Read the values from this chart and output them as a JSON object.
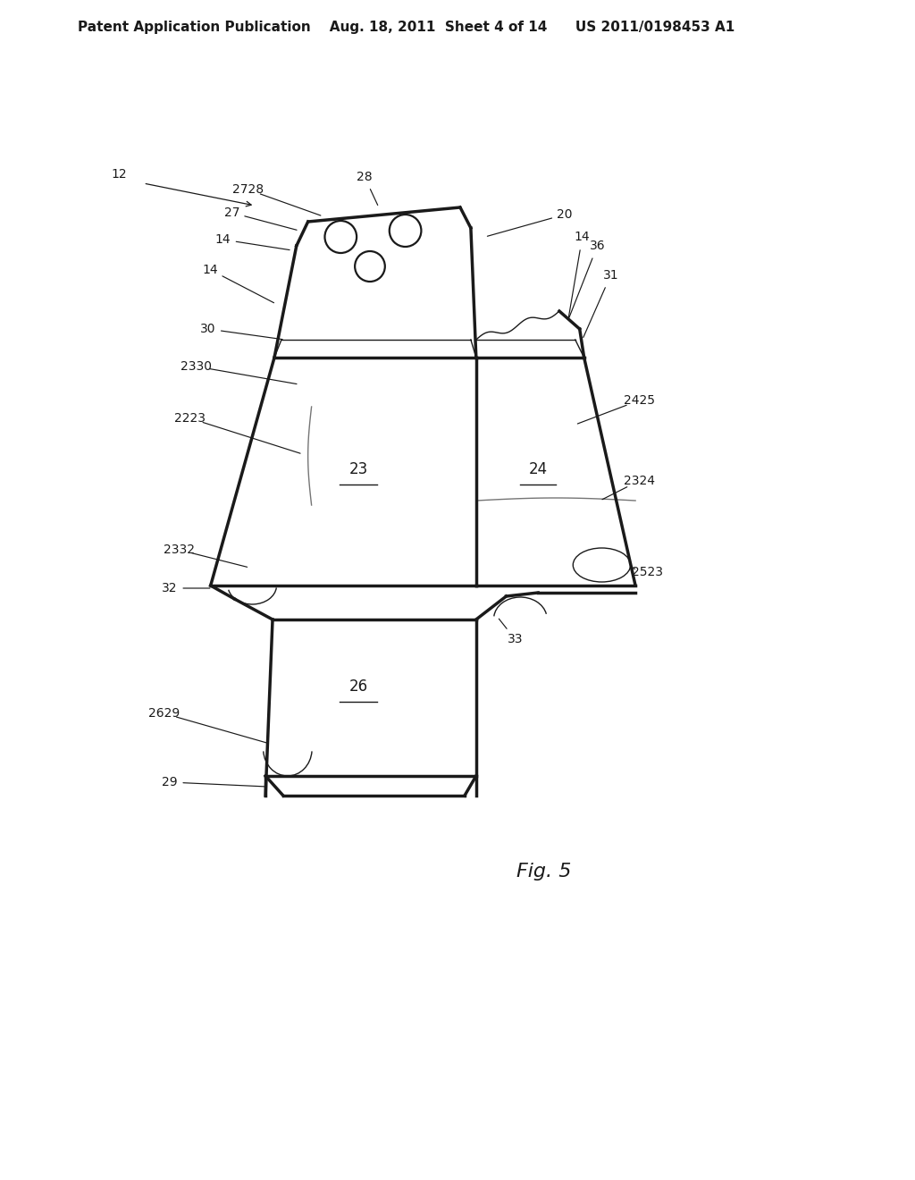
{
  "bg_color": "#ffffff",
  "line_color": "#1a1a1a",
  "header_text": "Patent Application Publication    Aug. 18, 2011  Sheet 4 of 14      US 2011/0198453 A1",
  "fig_label": "Fig. 5",
  "title_fontsize": 11,
  "label_fontsize": 10,
  "fig_label_fontsize": 16,
  "annotation_fontsize": 10,
  "lw_thin": 1.0,
  "lw_thick": 2.5,
  "lw_med": 1.6
}
